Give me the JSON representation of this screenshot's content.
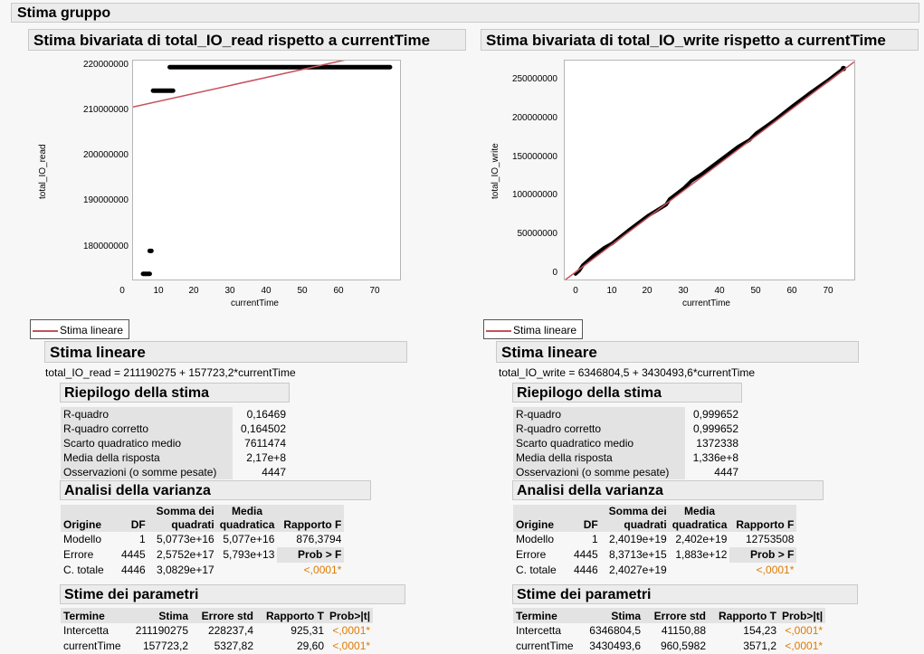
{
  "main_title": "Stima gruppo",
  "left": {
    "title": "Stima bivariata di total_IO_read rispetto a currentTime",
    "plot": {
      "ylabel": "total_IO_read",
      "xlabel": "currentTime",
      "yticks": [
        "220000000",
        "210000000",
        "200000000",
        "190000000",
        "180000000"
      ],
      "xticks": [
        "0",
        "10",
        "20",
        "30",
        "40",
        "50",
        "60",
        "70"
      ]
    },
    "legend": "Stima lineare",
    "fit_title": "Stima lineare",
    "equation": "total_IO_read = 211190275 + 157723,2*currentTime",
    "summary": {
      "title": "Riepilogo della stima",
      "rows": [
        {
          "label": "R-quadro",
          "value": "0,16469"
        },
        {
          "label": "R-quadro corretto",
          "value": "0,164502"
        },
        {
          "label": "Scarto quadratico medio",
          "value": "7611474"
        },
        {
          "label": "Media della risposta",
          "value": "2,17e+8"
        },
        {
          "label": "Osservazioni (o somme pesate)",
          "value": "4447"
        }
      ]
    },
    "anova": {
      "title": "Analisi della varianza",
      "h_origin": "Origine",
      "h_df": "DF",
      "h_ss1": "Somma dei",
      "h_ss2": "quadrati",
      "h_ms1": "Media",
      "h_ms2": "quadratica",
      "h_f": "Rapporto F",
      "r1": {
        "src": "Modello",
        "df": "1",
        "ss": "5,0773e+16",
        "ms": "5,077e+16",
        "f": "876,3794"
      },
      "r2": {
        "src": "Errore",
        "df": "4445",
        "ss": "2,5752e+17",
        "ms": "5,793e+13",
        "f": "Prob > F"
      },
      "r3": {
        "src": "C. totale",
        "df": "4446",
        "ss": "3,0829e+17",
        "f": "<,0001*"
      }
    },
    "params": {
      "title": "Stime dei parametri",
      "h_term": "Termine",
      "h_est": "Stima",
      "h_se": "Errore std",
      "h_t": "Rapporto T",
      "h_p": "Prob>|t|",
      "r1": {
        "term": "Intercetta",
        "est": "211190275",
        "se": "228237,4",
        "t": "925,31",
        "p": "<,0001*"
      },
      "r2": {
        "term": "currentTime",
        "est": "157723,2",
        "se": "5327,82",
        "t": "29,60",
        "p": "<,0001*"
      }
    }
  },
  "right": {
    "title": "Stima bivariata di total_IO_write rispetto a currentTime",
    "plot": {
      "ylabel": "total_IO_write",
      "xlabel": "currentTime",
      "yticks": [
        "250000000",
        "200000000",
        "150000000",
        "100000000",
        "50000000",
        "0"
      ],
      "xticks": [
        "0",
        "10",
        "20",
        "30",
        "40",
        "50",
        "60",
        "70"
      ]
    },
    "legend": "Stima lineare",
    "fit_title": "Stima lineare",
    "equation": "total_IO_write = 6346804,5 + 3430493,6*currentTime",
    "summary": {
      "title": "Riepilogo della stima",
      "rows": [
        {
          "label": "R-quadro",
          "value": "0,999652"
        },
        {
          "label": "R-quadro corretto",
          "value": "0,999652"
        },
        {
          "label": "Scarto quadratico medio",
          "value": "1372338"
        },
        {
          "label": "Media della risposta",
          "value": "1,336e+8"
        },
        {
          "label": "Osservazioni (o somme pesate)",
          "value": "4447"
        }
      ]
    },
    "anova": {
      "title": "Analisi della varianza",
      "h_origin": "Origine",
      "h_df": "DF",
      "h_ss1": "Somma dei",
      "h_ss2": "quadrati",
      "h_ms1": "Media",
      "h_ms2": "quadratica",
      "h_f": "Rapporto F",
      "r1": {
        "src": "Modello",
        "df": "1",
        "ss": "2,4019e+19",
        "ms": "2,402e+19",
        "f": "12753508"
      },
      "r2": {
        "src": "Errore",
        "df": "4445",
        "ss": "8,3713e+15",
        "ms": "1,883e+12",
        "f": "Prob > F"
      },
      "r3": {
        "src": "C. totale",
        "df": "4446",
        "ss": "2,4027e+19",
        "f": "<,0001*"
      }
    },
    "params": {
      "title": "Stime dei parametri",
      "h_term": "Termine",
      "h_est": "Stima",
      "h_se": "Errore std",
      "h_t": "Rapporto T",
      "h_p": "Prob>|t|",
      "r1": {
        "term": "Intercetta",
        "est": "6346804,5",
        "se": "41150,88",
        "t": "154,23",
        "p": "<,0001*"
      },
      "r2": {
        "term": "currentTime",
        "est": "3430493,6",
        "se": "960,5982",
        "t": "3571,2",
        "p": "<,0001*"
      }
    }
  },
  "colors": {
    "fit_line": "#c8505a",
    "points": "#000000",
    "significant": "#e07b00"
  },
  "chart_data": [
    {
      "type": "scatter",
      "title": "Stima bivariata di total_IO_read rispetto a currentTime",
      "xlabel": "currentTime",
      "ylabel": "total_IO_read",
      "xlim": [
        -3,
        77
      ],
      "ylim": [
        174000000,
        220600000
      ],
      "grid": false,
      "segments": [
        {
          "x0": 0,
          "x1": 2,
          "y": 175200000
        },
        {
          "x0": 2,
          "x1": 2.5,
          "y": 180100000
        },
        {
          "x0": 3,
          "x1": 9,
          "y": 214200000
        },
        {
          "x0": 8,
          "x1": 74,
          "y": 219200000
        }
      ],
      "fit": {
        "intercept": 211190275,
        "slope": 157723.2
      }
    },
    {
      "type": "scatter",
      "title": "Stima bivariata di total_IO_write rispetto a currentTime",
      "xlabel": "currentTime",
      "ylabel": "total_IO_write",
      "xlim": [
        -3,
        77
      ],
      "ylim": [
        -3000000,
        272000000
      ],
      "grid": false,
      "points_x": [
        0,
        1,
        2,
        5,
        8,
        10,
        15,
        20,
        25,
        26,
        30,
        32,
        35,
        40,
        45,
        48,
        50,
        55,
        60,
        65,
        70,
        74
      ],
      "points_y": [
        4000000,
        8000000,
        15000000,
        27000000,
        37000000,
        42000000,
        60000000,
        77000000,
        91000000,
        98000000,
        112000000,
        121000000,
        130000000,
        147000000,
        164000000,
        172000000,
        181000000,
        197000000,
        215000000,
        232000000,
        248000000,
        262000000
      ],
      "fit": {
        "intercept": 6346804.5,
        "slope": 3430493.6
      }
    }
  ]
}
